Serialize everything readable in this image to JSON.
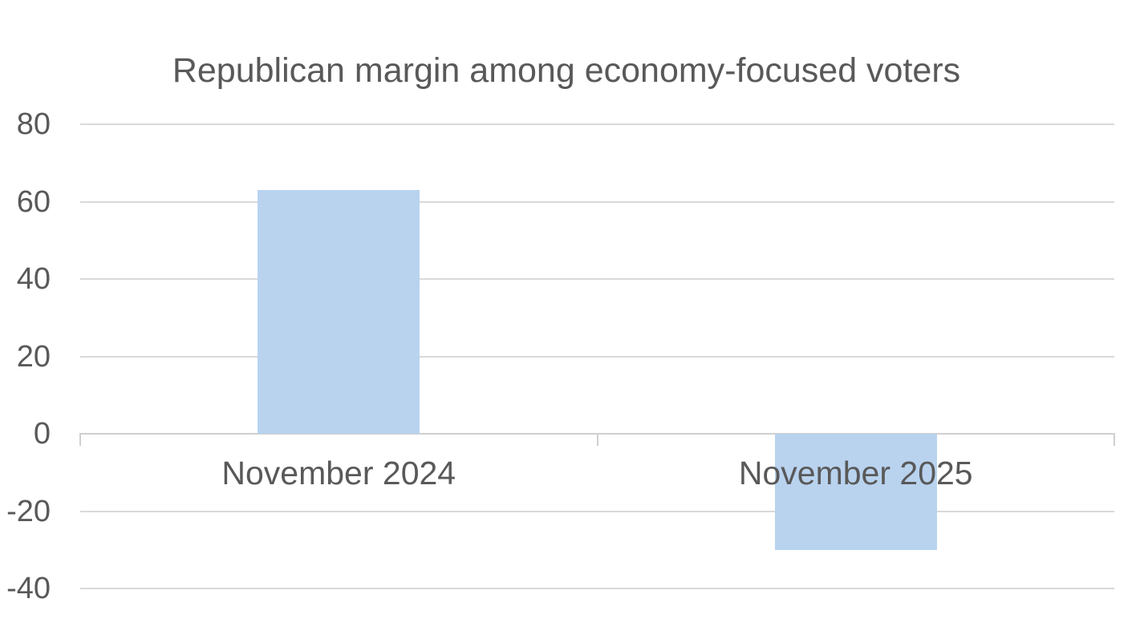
{
  "chart_data": {
    "type": "bar",
    "title": "Republican margin among economy-focused voters",
    "categories": [
      "November 2024",
      "November 2025"
    ],
    "values": [
      63,
      -30
    ],
    "xlabel": "",
    "ylabel": "",
    "yticks": [
      80,
      60,
      40,
      20,
      0,
      -20,
      -40
    ],
    "ylim": [
      -40,
      80
    ],
    "ytick_step": 20,
    "grid": true,
    "legend": "none",
    "bar_color": "#B9D3EF",
    "colors": {
      "text": "#595959",
      "gridline": "#D9D9D9",
      "axis": "#CFCFCF",
      "background": "#FFFFFF"
    }
  }
}
